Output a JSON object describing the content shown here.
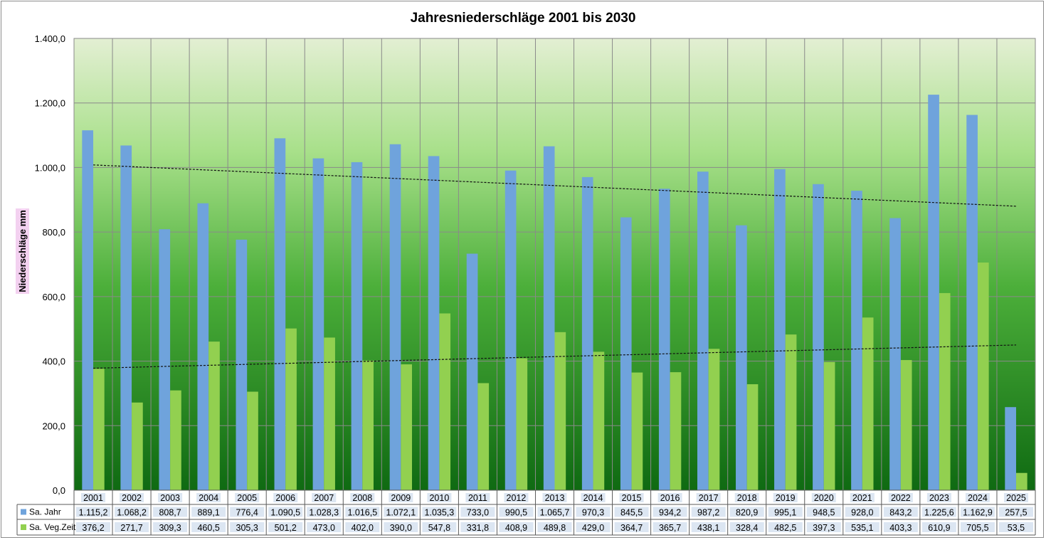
{
  "chart_data": {
    "type": "bar",
    "title": "Jahresniederschläge  2001 bis 2030",
    "ylabel": "Niederschläge mm",
    "xlabel": "",
    "ylim": [
      0,
      1400
    ],
    "ytick_step": 200,
    "ytick_labels": [
      "0,0",
      "200,0",
      "400,0",
      "600,0",
      "800,0",
      "1.000,0",
      "1.200,0",
      "1.400,0"
    ],
    "grid": true,
    "legend_placement": "data-table-left",
    "categories": [
      "2001",
      "2002",
      "2003",
      "2004",
      "2005",
      "2006",
      "2007",
      "2008",
      "2009",
      "2010",
      "2011",
      "2012",
      "2013",
      "2014",
      "2015",
      "2016",
      "2017",
      "2018",
      "2019",
      "2020",
      "2021",
      "2022",
      "2023",
      "2024",
      "2025"
    ],
    "series": [
      {
        "name": "Sa. Jahr",
        "color": "#6fa3dc",
        "values": [
          1115.2,
          1068.2,
          808.7,
          889.1,
          776.4,
          1090.5,
          1028.3,
          1016.5,
          1072.1,
          1035.3,
          733.0,
          990.5,
          1065.7,
          970.3,
          845.5,
          934.2,
          987.2,
          820.9,
          995.1,
          948.5,
          928.0,
          843.2,
          1225.6,
          1162.9,
          257.5
        ],
        "labels": [
          "1.115,2",
          "1.068,2",
          "808,7",
          "889,1",
          "776,4",
          "1.090,5",
          "1.028,3",
          "1.016,5",
          "1.072,1",
          "1.035,3",
          "733,0",
          "990,5",
          "1.065,7",
          "970,3",
          "845,5",
          "934,2",
          "987,2",
          "820,9",
          "995,1",
          "948,5",
          "928,0",
          "843,2",
          "1.225,6",
          "1.162,9",
          "257,5"
        ]
      },
      {
        "name": "Sa. Veg.Zeit",
        "color": "#92d050",
        "values": [
          376.2,
          271.7,
          309.3,
          460.5,
          305.3,
          501.2,
          473.0,
          402.0,
          390.0,
          547.8,
          331.8,
          408.9,
          489.8,
          429.0,
          364.7,
          365.7,
          438.1,
          328.4,
          482.5,
          397.3,
          535.1,
          403.3,
          610.9,
          705.5,
          53.5
        ],
        "labels": [
          "376,2",
          "271,7",
          "309,3",
          "460,5",
          "305,3",
          "501,2",
          "473,0",
          "402,0",
          "390,0",
          "547,8",
          "331,8",
          "408,9",
          "489,8",
          "429,0",
          "364,7",
          "365,7",
          "438,1",
          "328,4",
          "482,5",
          "397,3",
          "535,1",
          "403,3",
          "610,9",
          "705,5",
          "53,5"
        ]
      }
    ],
    "trendlines": [
      {
        "series": "Sa. Jahr",
        "style": "dashed",
        "y_start": 1008,
        "y_end": 880
      },
      {
        "series": "Sa. Veg.Zeit",
        "style": "dashed",
        "y_start": 378,
        "y_end": 450
      }
    ]
  }
}
